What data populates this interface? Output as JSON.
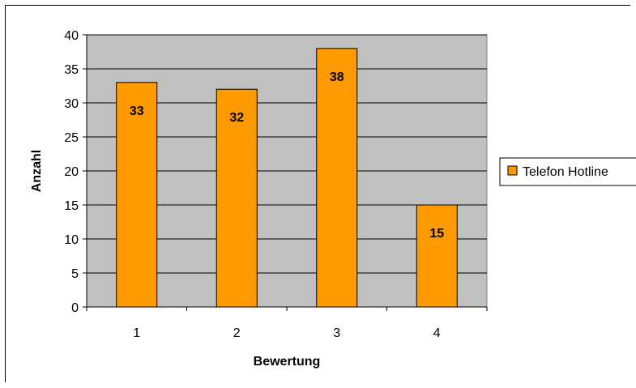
{
  "chart_data": {
    "type": "bar",
    "title": "",
    "xlabel": "Bewertung",
    "ylabel": "Anzahl",
    "categories": [
      "1",
      "2",
      "3",
      "4"
    ],
    "series": [
      {
        "name": "Telefon Hotline",
        "values": [
          33,
          32,
          38,
          15
        ],
        "color": "#ff9900"
      }
    ],
    "ylim": [
      0,
      40
    ],
    "yticks": [
      0,
      5,
      10,
      15,
      20,
      25,
      30,
      35,
      40
    ],
    "grid": true,
    "plot_background": "#c0c0c0",
    "data_labels": true,
    "legend_position": "right"
  }
}
